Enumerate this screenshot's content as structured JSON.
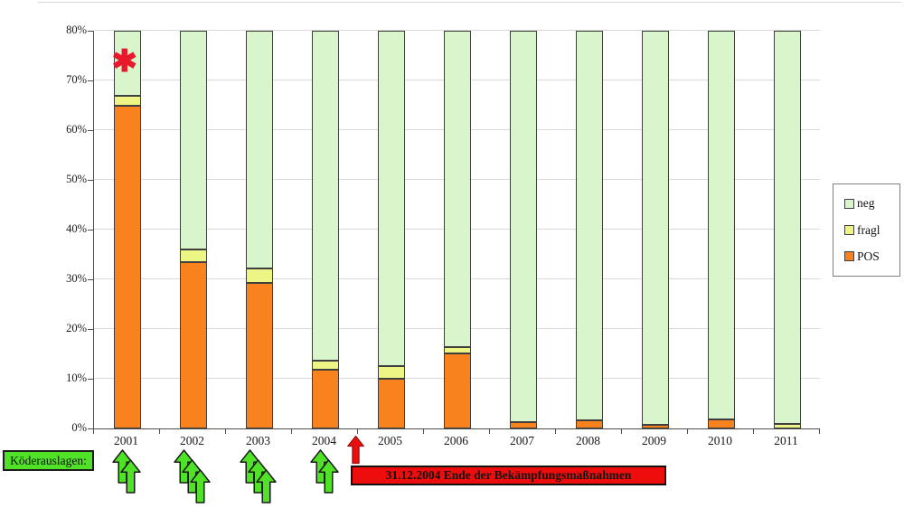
{
  "chart_data": {
    "type": "bar",
    "stacked": true,
    "title": "",
    "xlabel": "",
    "ylabel": "",
    "categories": [
      "2001",
      "2002",
      "2003",
      "2004",
      "2005",
      "2006",
      "2007",
      "2008",
      "2009",
      "2010",
      "2011"
    ],
    "series": [
      {
        "name": "POS",
        "color": "#F8821D",
        "values": [
          65.0,
          33.4,
          29.3,
          11.8,
          10.0,
          15.1,
          1.2,
          1.6,
          0.7,
          1.9,
          0.0
        ]
      },
      {
        "name": "fragl",
        "color": "#EDF685",
        "values": [
          2.0,
          2.6,
          2.8,
          1.8,
          2.5,
          1.2,
          0.0,
          0.0,
          0.0,
          0.0,
          1.0
        ]
      },
      {
        "name": "neg",
        "color": "#D9F5CC",
        "values": [
          33.0,
          64.0,
          67.9,
          86.4,
          87.5,
          83.7,
          98.8,
          98.4,
          99.3,
          98.1,
          99.0
        ]
      }
    ],
    "ylim": [
      0,
      80
    ],
    "yticks": [
      "0%",
      "10%",
      "20%",
      "30%",
      "40%",
      "50%",
      "60%",
      "70%",
      "80%"
    ],
    "grid": true,
    "legend_position": "right",
    "legend_order": [
      "neg",
      "fragl",
      "POS"
    ]
  },
  "annotations": {
    "asterisk": {
      "symbol": "✱",
      "color": "#E8192C",
      "category": "2001"
    },
    "bait_label": {
      "text": "Köderauslagen:",
      "bg": "#50E226"
    },
    "bait_arrows": {
      "color": "#50E226",
      "groups": [
        {
          "category": "2001",
          "count": 2
        },
        {
          "category": "2002",
          "count": 3
        },
        {
          "category": "2003",
          "count": 3
        },
        {
          "category": "2004",
          "count": 2
        }
      ]
    },
    "end_arrow": {
      "color": "#EE0D0D",
      "between": [
        "2004",
        "2005"
      ]
    },
    "end_banner": {
      "text": "31.12.2004 Ende der Bekämpfungsmaßnahmen",
      "bg": "#EE0D0D"
    }
  }
}
